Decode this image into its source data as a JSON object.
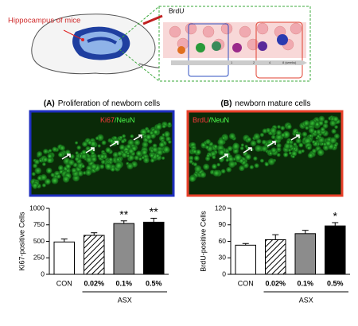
{
  "illustration": {
    "region_label": "Hippocampus of mice",
    "injection_label": "BrdU",
    "timeline": [
      "1",
      "2",
      "4",
      "8 (weeks)"
    ]
  },
  "chart_data": [
    {
      "type": "bar",
      "panel": "(A)",
      "title": "Proliferation of newborn cells",
      "image_label": {
        "marker": "Ki67",
        "rest": "/NeuN",
        "marker_color": "#ff3b3b",
        "rest_color": "#4cff4c",
        "border_color": "#1f2fbf"
      },
      "ylabel": "Ki67-positive Cells",
      "categories": [
        "CON",
        "0.02%",
        "0.1%",
        "0.5%"
      ],
      "values": [
        490,
        590,
        770,
        790
      ],
      "errors": [
        45,
        40,
        40,
        60
      ],
      "fills": [
        "#ffffff",
        "hatch",
        "#8c8c8c",
        "#000000"
      ],
      "significance": [
        null,
        null,
        "**",
        "**"
      ],
      "group": {
        "label": "ASX",
        "from": 1,
        "to": 3
      },
      "ylim": [
        0,
        1000
      ],
      "yticks": [
        0,
        250,
        500,
        750,
        1000
      ]
    },
    {
      "type": "bar",
      "panel": "(B)",
      "title": "newborn mature cells",
      "image_label": {
        "marker": "BrdU",
        "rest": "/NeuN",
        "marker_color": "#ff3b3b",
        "rest_color": "#4cff4c",
        "border_color": "#e8402a"
      },
      "ylabel": "BrdU-positive Cells",
      "categories": [
        "CON",
        "0.02%",
        "0.1%",
        "0.5%"
      ],
      "values": [
        53,
        63,
        74,
        88
      ],
      "errors": [
        3,
        9,
        6,
        6
      ],
      "fills": [
        "#ffffff",
        "hatch",
        "#8c8c8c",
        "#000000"
      ],
      "significance": [
        null,
        null,
        null,
        "*"
      ],
      "group": {
        "label": "ASX",
        "from": 1,
        "to": 3
      },
      "ylim": [
        0,
        120
      ],
      "yticks": [
        0,
        30,
        60,
        90,
        120
      ]
    }
  ]
}
